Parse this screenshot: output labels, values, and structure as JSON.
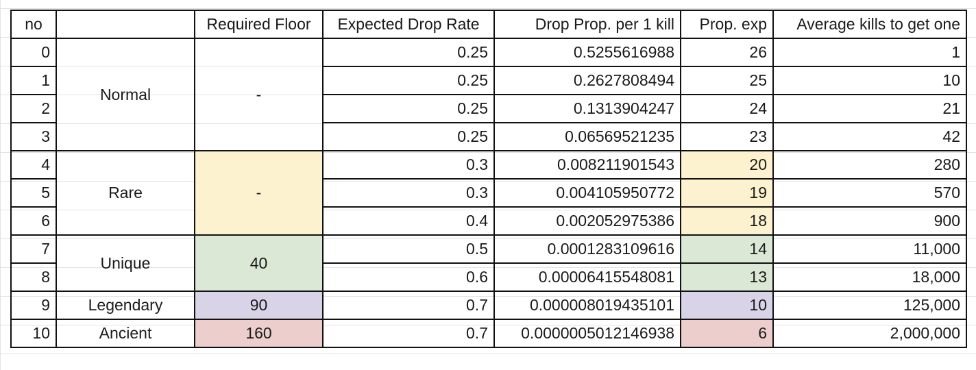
{
  "colors": {
    "rare": "#fcf2cf",
    "unique": "#dbe8d5",
    "legendary": "#d9d3e8",
    "ancient": "#eccfcc"
  },
  "headers": [
    "no",
    "",
    "Required Floor",
    "Expected Drop Rate",
    "Drop Prop. per 1 kill",
    "Prop. exp",
    "Average kills to get one"
  ],
  "rows": [
    {
      "no": "0",
      "rate": "0.25",
      "prop": "0.5255616988",
      "exp": "26",
      "kills": "1"
    },
    {
      "no": "1",
      "rate": "0.25",
      "prop": "0.2627808494",
      "exp": "25",
      "kills": "10"
    },
    {
      "no": "2",
      "rate": "0.25",
      "prop": "0.1313904247",
      "exp": "24",
      "kills": "21"
    },
    {
      "no": "3",
      "rate": "0.25",
      "prop": "0.06569521235",
      "exp": "23",
      "kills": "42"
    },
    {
      "no": "4",
      "rate": "0.3",
      "prop": "0.008211901543",
      "exp": "20",
      "kills": "280"
    },
    {
      "no": "5",
      "rate": "0.3",
      "prop": "0.004105950772",
      "exp": "19",
      "kills": "570"
    },
    {
      "no": "6",
      "rate": "0.4",
      "prop": "0.002052975386",
      "exp": "18",
      "kills": "900"
    },
    {
      "no": "7",
      "rate": "0.5",
      "prop": "0.0001283109616",
      "exp": "14",
      "kills": "11,000"
    },
    {
      "no": "8",
      "rate": "0.6",
      "prop": "0.00006415548081",
      "exp": "13",
      "kills": "18,000"
    },
    {
      "no": "9",
      "rate": "0.7",
      "prop": "0.000008019435101",
      "exp": "10",
      "kills": "125,000"
    },
    {
      "no": "10",
      "rate": "0.7",
      "prop": "0.0000005012146938",
      "exp": "6",
      "kills": "2,000,000"
    }
  ],
  "groups": {
    "normal": {
      "name": "Normal",
      "floor": "-"
    },
    "rare": {
      "name": "Rare",
      "floor": "-"
    },
    "unique": {
      "name": "Unique",
      "floor": "40"
    },
    "legendary": {
      "name": "Legendary",
      "floor": "90"
    },
    "ancient": {
      "name": "Ancient",
      "floor": "160"
    }
  }
}
